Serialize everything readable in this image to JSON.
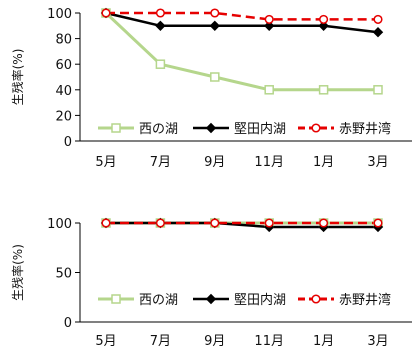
{
  "chart_data": [
    {
      "type": "line",
      "categories": [
        "5月",
        "7月",
        "9月",
        "11月",
        "1月",
        "3月"
      ],
      "ylabel": "生残率(%)",
      "ylim": [
        0,
        100
      ],
      "yticks": [
        0,
        20,
        40,
        60,
        80,
        100
      ],
      "grid": false,
      "legend_position": "bottom-inside",
      "series": [
        {
          "name": "西の湖",
          "values": [
            100,
            60,
            50,
            40,
            40,
            40
          ],
          "color": "#b5d68c",
          "style": "solid-open-square"
        },
        {
          "name": "堅田内湖",
          "values": [
            100,
            90,
            90,
            90,
            90,
            85
          ],
          "color": "#000000",
          "style": "solid-diamond"
        },
        {
          "name": "赤野井湾",
          "values": [
            100,
            100,
            100,
            95,
            95,
            95
          ],
          "color": "#e60000",
          "style": "dashed-open-circle"
        }
      ]
    },
    {
      "type": "line",
      "categories": [
        "5月",
        "7月",
        "9月",
        "11月",
        "1月",
        "3月"
      ],
      "ylabel": "生残率(%)",
      "ylim": [
        0,
        100
      ],
      "yticks": [
        0,
        50,
        100
      ],
      "grid": false,
      "legend_position": "bottom-inside",
      "series": [
        {
          "name": "西の湖",
          "values": [
            100,
            100,
            100,
            100,
            100,
            100
          ],
          "color": "#b5d68c",
          "style": "solid-open-square"
        },
        {
          "name": "堅田内湖",
          "values": [
            100,
            100,
            100,
            96,
            96,
            96
          ],
          "color": "#000000",
          "style": "solid-diamond"
        },
        {
          "name": "赤野井湾",
          "values": [
            100,
            100,
            100,
            100,
            100,
            100
          ],
          "color": "#e60000",
          "style": "dashed-open-circle"
        }
      ]
    }
  ]
}
